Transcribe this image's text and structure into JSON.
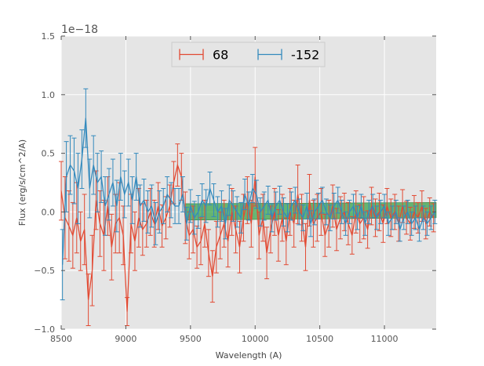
{
  "chart_data": {
    "type": "line",
    "title": "",
    "xlabel": "Wavelength (A)",
    "ylabel": "Flux (erg/s/cm^2/A)",
    "y_offset_label": "1e−18",
    "xlim": [
      8500,
      11400
    ],
    "ylim": [
      -1.0,
      1.5
    ],
    "y_scale": 1e-18,
    "xticks": [
      8500,
      9000,
      9500,
      10000,
      10500,
      11000
    ],
    "xtick_labels": [
      "8500",
      "9000",
      "9500",
      "10000",
      "10500",
      "11000"
    ],
    "yticks": [
      -1.0,
      -0.5,
      0.0,
      0.5,
      1.0,
      1.5
    ],
    "ytick_labels": [
      "−1.0",
      "−0.5",
      "0.0",
      "0.5",
      "1.0",
      "1.5"
    ],
    "grid": true,
    "legend_position": "top-center",
    "band": {
      "name": "noise-band",
      "color": "#3aa34a",
      "x": [
        9460,
        11400
      ],
      "y_low": [
        -0.07,
        -0.05
      ],
      "y_high": [
        0.07,
        0.08
      ]
    },
    "series": [
      {
        "name": "68",
        "color": "#e24a33",
        "x": [
          8500,
          8530,
          8560,
          8590,
          8620,
          8650,
          8680,
          8710,
          8740,
          8770,
          8800,
          8830,
          8860,
          8890,
          8920,
          8950,
          8980,
          9010,
          9040,
          9070,
          9100,
          9130,
          9160,
          9190,
          9220,
          9250,
          9280,
          9310,
          9340,
          9370,
          9400,
          9430,
          9460,
          9490,
          9520,
          9550,
          9580,
          9610,
          9640,
          9670,
          9700,
          9730,
          9760,
          9790,
          9820,
          9850,
          9880,
          9910,
          9940,
          9970,
          10000,
          10030,
          10060,
          10090,
          10120,
          10150,
          10180,
          10210,
          10240,
          10270,
          10300,
          10330,
          10360,
          10390,
          10420,
          10450,
          10480,
          10510,
          10540,
          10570,
          10600,
          10630,
          10660,
          10690,
          10720,
          10750,
          10780,
          10810,
          10840,
          10870,
          10900,
          10930,
          10960,
          10990,
          11020,
          11050,
          11080,
          11110,
          11140,
          11170,
          11200,
          11230,
          11260,
          11290,
          11320,
          11350,
          11380
        ],
        "y": [
          0.18,
          -0.05,
          -0.12,
          -0.2,
          -0.05,
          -0.25,
          -0.15,
          -0.75,
          -0.5,
          0.1,
          -0.1,
          -0.2,
          0.05,
          -0.3,
          -0.1,
          -0.05,
          -0.2,
          -0.85,
          -0.1,
          -0.25,
          -0.05,
          -0.15,
          -0.1,
          0.0,
          -0.1,
          0.05,
          -0.12,
          -0.05,
          0.05,
          0.25,
          0.4,
          0.3,
          -0.05,
          -0.2,
          -0.15,
          -0.3,
          -0.25,
          -0.1,
          -0.35,
          -0.55,
          -0.3,
          -0.2,
          -0.1,
          -0.25,
          0.0,
          -0.15,
          -0.3,
          -0.05,
          0.1,
          -0.1,
          0.3,
          -0.2,
          -0.05,
          -0.35,
          -0.15,
          0.0,
          -0.2,
          -0.05,
          -0.25,
          0.0,
          -0.1,
          0.15,
          -0.05,
          -0.3,
          0.1,
          -0.1,
          -0.05,
          0.0,
          -0.2,
          -0.1,
          0.05,
          -0.15,
          -0.05,
          0.0,
          -0.1,
          -0.2,
          0.0,
          -0.1,
          -0.05,
          -0.15,
          0.05,
          -0.05,
          0.0,
          -0.1,
          0.05,
          -0.05,
          0.0,
          -0.1,
          0.05,
          -0.05,
          -0.1,
          0.0,
          -0.05,
          0.05,
          -0.1,
          0.0,
          -0.05
        ],
        "err": [
          0.25,
          0.35,
          0.3,
          0.28,
          0.3,
          0.25,
          0.3,
          0.22,
          0.3,
          0.25,
          0.28,
          0.3,
          0.25,
          0.28,
          0.25,
          0.3,
          0.25,
          0.12,
          0.25,
          0.25,
          0.25,
          0.22,
          0.2,
          0.2,
          0.2,
          0.2,
          0.18,
          0.18,
          0.18,
          0.18,
          0.18,
          0.2,
          0.22,
          0.2,
          0.2,
          0.18,
          0.2,
          0.2,
          0.2,
          0.22,
          0.22,
          0.2,
          0.2,
          0.22,
          0.2,
          0.2,
          0.22,
          0.2,
          0.2,
          0.2,
          0.25,
          0.2,
          0.2,
          0.22,
          0.2,
          0.2,
          0.22,
          0.2,
          0.2,
          0.2,
          0.2,
          0.25,
          0.2,
          0.2,
          0.22,
          0.2,
          0.2,
          0.2,
          0.18,
          0.2,
          0.18,
          0.18,
          0.18,
          0.16,
          0.18,
          0.16,
          0.18,
          0.16,
          0.18,
          0.16,
          0.16,
          0.16,
          0.16,
          0.16,
          0.15,
          0.16,
          0.15,
          0.15,
          0.14,
          0.14,
          0.14,
          0.14,
          0.13,
          0.13,
          0.13,
          0.12,
          0.12
        ]
      },
      {
        "name": "-152",
        "color": "#348abd",
        "x": [
          8510,
          8540,
          8570,
          8600,
          8630,
          8660,
          8690,
          8720,
          8750,
          8780,
          8810,
          8840,
          8870,
          8900,
          8930,
          8960,
          8990,
          9020,
          9050,
          9080,
          9110,
          9140,
          9170,
          9200,
          9230,
          9260,
          9290,
          9320,
          9350,
          9380,
          9410,
          9440,
          9470,
          9500,
          9530,
          9560,
          9590,
          9620,
          9650,
          9680,
          9710,
          9740,
          9770,
          9800,
          9830,
          9860,
          9890,
          9920,
          9950,
          9980,
          10010,
          10040,
          10070,
          10100,
          10130,
          10160,
          10190,
          10220,
          10250,
          10280,
          10310,
          10340,
          10370,
          10400,
          10430,
          10460,
          10490,
          10520,
          10550,
          10580,
          10610,
          10640,
          10670,
          10700,
          10730,
          10760,
          10790,
          10820,
          10850,
          10880,
          10910,
          10940,
          10970,
          11000,
          11030,
          11060,
          11090,
          11120,
          11150,
          11180,
          11210,
          11240,
          11270,
          11300,
          11330,
          11360,
          11390
        ],
        "y": [
          -0.45,
          0.3,
          0.4,
          0.35,
          0.2,
          0.45,
          0.8,
          0.2,
          0.4,
          0.25,
          0.3,
          0.05,
          0.15,
          0.25,
          0.05,
          0.3,
          0.15,
          0.25,
          0.1,
          0.3,
          0.05,
          0.1,
          0.0,
          0.05,
          -0.1,
          0.0,
          0.05,
          0.15,
          0.1,
          0.05,
          0.05,
          0.15,
          -0.1,
          0.05,
          -0.05,
          0.0,
          0.1,
          0.05,
          0.2,
          0.1,
          0.0,
          0.05,
          -0.1,
          0.1,
          0.05,
          0.0,
          -0.05,
          0.15,
          0.05,
          0.2,
          0.15,
          0.0,
          0.05,
          0.1,
          -0.05,
          0.05,
          0.1,
          0.0,
          -0.05,
          0.05,
          0.1,
          0.0,
          -0.05,
          0.05,
          -0.1,
          0.0,
          0.05,
          0.1,
          0.0,
          -0.05,
          0.05,
          0.1,
          0.0,
          -0.1,
          0.0,
          0.05,
          -0.05,
          0.05,
          -0.1,
          0.0,
          0.05,
          -0.05,
          0.0,
          0.05,
          -0.1,
          -0.05,
          0.0,
          -0.15,
          -0.05,
          0.0,
          -0.1,
          -0.05,
          -0.15,
          -0.05,
          -0.1,
          -0.05,
          0.0
        ],
        "err": [
          0.3,
          0.3,
          0.25,
          0.28,
          0.3,
          0.25,
          0.25,
          0.25,
          0.25,
          0.25,
          0.22,
          0.25,
          0.22,
          0.2,
          0.22,
          0.2,
          0.2,
          0.2,
          0.2,
          0.2,
          0.18,
          0.18,
          0.18,
          0.18,
          0.18,
          0.18,
          0.15,
          0.15,
          0.15,
          0.15,
          0.15,
          0.15,
          0.14,
          0.14,
          0.14,
          0.14,
          0.14,
          0.14,
          0.14,
          0.14,
          0.13,
          0.13,
          0.13,
          0.13,
          0.13,
          0.13,
          0.13,
          0.13,
          0.12,
          0.12,
          0.12,
          0.12,
          0.12,
          0.12,
          0.12,
          0.12,
          0.12,
          0.12,
          0.12,
          0.12,
          0.11,
          0.11,
          0.11,
          0.11,
          0.11,
          0.11,
          0.11,
          0.11,
          0.11,
          0.11,
          0.11,
          0.11,
          0.1,
          0.1,
          0.1,
          0.1,
          0.1,
          0.1,
          0.1,
          0.1,
          0.1,
          0.1,
          0.1,
          0.1,
          0.1,
          0.1,
          0.1,
          0.1,
          0.1,
          0.1,
          0.1,
          0.1,
          0.1,
          0.1,
          0.1,
          0.1,
          0.1
        ]
      }
    ]
  },
  "colors": {
    "plot_bg": "#e5e5e5",
    "grid": "#ffffff",
    "legend_bg": "#e5e5e5",
    "legend_border": "#cccccc"
  }
}
